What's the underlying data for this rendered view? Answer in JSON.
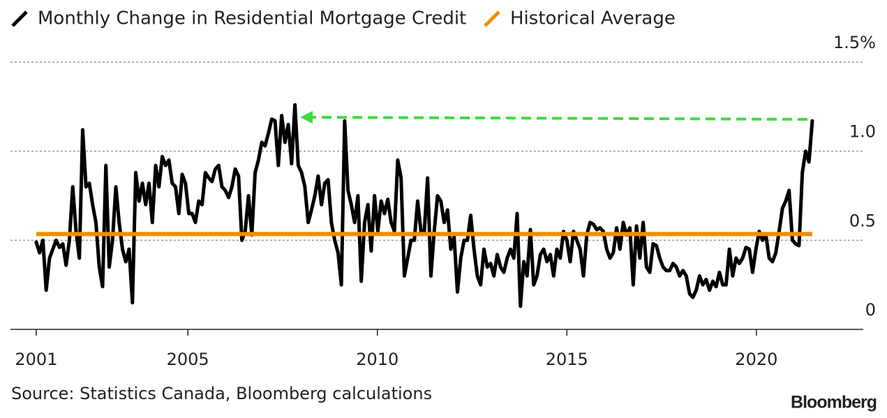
{
  "chart_data": {
    "type": "line",
    "source": "Source: Statistics Canada, Bloomberg calculations",
    "logo": "Bloomberg",
    "xlim": [
      2000.32,
      2022.82
    ],
    "xticks": [
      2001,
      2005,
      2010,
      2015,
      2020
    ],
    "ylim": [
      0,
      1.5
    ],
    "yticks": [
      0,
      0.5,
      {
        "value": 1,
        "label": "1.0"
      },
      {
        "value": 1.5,
        "label": "1.5%"
      }
    ],
    "grid": true,
    "legend": "top-left",
    "series": [
      {
        "name": "Monthly Change in Residential Mortgage Credit",
        "color": "#000000",
        "x": [
          2001,
          2001.0875,
          2001.175,
          2001.2625,
          2001.35,
          2001.4375,
          2001.525,
          2001.6125,
          2001.7,
          2001.7875,
          2001.875,
          2001.9625,
          2002.05,
          2002.1375,
          2002.225,
          2002.3125,
          2002.4,
          2002.4875,
          2002.575,
          2002.6625,
          2002.75,
          2002.8375,
          2002.925,
          2003.0125,
          2003.1,
          2003.1875,
          2003.275,
          2003.3625,
          2003.45,
          2003.5375,
          2003.625,
          2003.7125,
          2003.8,
          2003.8875,
          2003.975,
          2004.0625,
          2004.15,
          2004.2375,
          2004.325,
          2004.4125,
          2004.5,
          2004.5875,
          2004.675,
          2004.7625,
          2004.85,
          2004.9375,
          2005.025,
          2005.1125,
          2005.2,
          2005.2875,
          2005.375,
          2005.4625,
          2005.55,
          2005.6375,
          2005.725,
          2005.8125,
          2005.9,
          2005.9875,
          2006.075,
          2006.1625,
          2006.25,
          2006.3375,
          2006.425,
          2006.5125,
          2006.6,
          2006.6875,
          2006.775,
          2006.8625,
          2006.95,
          2007.0375,
          2007.125,
          2007.2125,
          2007.3,
          2007.3875,
          2007.475,
          2007.5625,
          2007.65,
          2007.7375,
          2007.825,
          2007.9125,
          2008,
          2008.0875,
          2008.175,
          2008.2625,
          2008.35,
          2008.4375,
          2008.525,
          2008.6125,
          2008.7,
          2008.7875,
          2008.875,
          2008.9625,
          2009.05,
          2009.1375,
          2009.225,
          2009.3125,
          2009.4,
          2009.4875,
          2009.575,
          2009.6625,
          2009.75,
          2009.8375,
          2009.925,
          2010.0125,
          2010.1,
          2010.1875,
          2010.275,
          2010.3625,
          2010.45,
          2010.5375,
          2010.625,
          2010.7125,
          2010.8,
          2010.8875,
          2010.975,
          2011.0625,
          2011.15,
          2011.2375,
          2011.325,
          2011.4125,
          2011.5,
          2011.5875,
          2011.675,
          2011.7625,
          2011.85,
          2011.9375,
          2012.025,
          2012.1125,
          2012.2,
          2012.2875,
          2012.375,
          2012.4625,
          2012.55,
          2012.6375,
          2012.725,
          2012.8125,
          2012.9,
          2012.9875,
          2013.075,
          2013.1625,
          2013.25,
          2013.3375,
          2013.425,
          2013.5125,
          2013.6,
          2013.6875,
          2013.775,
          2013.8625,
          2013.95,
          2014.0375,
          2014.125,
          2014.2125,
          2014.3,
          2014.3875,
          2014.475,
          2014.5625,
          2014.65,
          2014.7375,
          2014.825,
          2014.9125,
          2015,
          2015.0875,
          2015.175,
          2015.2625,
          2015.35,
          2015.4375,
          2015.525,
          2015.6125,
          2015.7,
          2015.7875,
          2015.875,
          2015.9625,
          2016.05,
          2016.1375,
          2016.225,
          2016.3125,
          2016.4,
          2016.4875,
          2016.575,
          2016.6625,
          2016.75,
          2016.8375,
          2016.925,
          2017.0125,
          2017.1,
          2017.1875,
          2017.275,
          2017.3625,
          2017.45,
          2017.5375,
          2017.625,
          2017.7125,
          2017.8,
          2017.8875,
          2017.975,
          2018.0625,
          2018.15,
          2018.2375,
          2018.325,
          2018.4125,
          2018.5,
          2018.5875,
          2018.675,
          2018.7625,
          2018.85,
          2018.9375,
          2019.025,
          2019.1125,
          2019.2,
          2019.2875,
          2019.375,
          2019.4625,
          2019.55,
          2019.6375,
          2019.725,
          2019.8125,
          2019.9,
          2019.9875,
          2020.075,
          2020.1625,
          2020.25,
          2020.3375,
          2020.425,
          2020.5125,
          2020.6,
          2020.6875,
          2020.775,
          2020.8625,
          2020.95,
          2021.0375,
          2021.125,
          2021.2125,
          2021.3,
          2021.3875,
          2021.475
        ],
        "values": [
          0.49,
          0.43,
          0.5,
          0.22,
          0.4,
          0.45,
          0.5,
          0.46,
          0.48,
          0.36,
          0.5,
          0.8,
          0.55,
          0.4,
          1.12,
          0.8,
          0.82,
          0.7,
          0.6,
          0.35,
          0.24,
          0.92,
          0.35,
          0.5,
          0.8,
          0.6,
          0.45,
          0.38,
          0.45,
          0.15,
          0.88,
          0.72,
          0.82,
          0.7,
          0.82,
          0.6,
          0.92,
          0.8,
          0.97,
          0.92,
          0.95,
          0.82,
          0.8,
          0.65,
          0.87,
          0.82,
          0.65,
          0.65,
          0.6,
          0.72,
          0.7,
          0.88,
          0.85,
          0.83,
          0.9,
          0.92,
          0.8,
          0.78,
          0.74,
          0.8,
          0.9,
          0.86,
          0.5,
          0.55,
          0.75,
          0.53,
          0.88,
          0.95,
          1.05,
          1.03,
          1.1,
          1.18,
          1.17,
          0.92,
          1.2,
          1.05,
          1.15,
          0.93,
          1.26,
          0.92,
          0.88,
          0.8,
          0.6,
          0.67,
          0.75,
          0.86,
          0.7,
          0.82,
          0.84,
          0.6,
          0.5,
          0.43,
          0.25,
          1.17,
          0.78,
          0.7,
          0.6,
          0.75,
          0.27,
          0.6,
          0.7,
          0.44,
          0.75,
          0.55,
          0.72,
          0.65,
          0.73,
          0.6,
          0.55,
          0.95,
          0.85,
          0.3,
          0.4,
          0.5,
          0.5,
          0.72,
          0.55,
          0.55,
          0.85,
          0.3,
          0.55,
          0.75,
          0.72,
          0.6,
          0.67,
          0.45,
          0.52,
          0.21,
          0.4,
          0.5,
          0.5,
          0.64,
          0.45,
          0.3,
          0.25,
          0.45,
          0.35,
          0.37,
          0.3,
          0.42,
          0.35,
          0.32,
          0.4,
          0.45,
          0.4,
          0.65,
          0.13,
          0.38,
          0.3,
          0.56,
          0.25,
          0.3,
          0.42,
          0.45,
          0.38,
          0.42,
          0.3,
          0.45,
          0.4,
          0.55,
          0.5,
          0.38,
          0.55,
          0.5,
          0.45,
          0.3,
          0.53,
          0.6,
          0.59,
          0.56,
          0.57,
          0.55,
          0.45,
          0.4,
          0.43,
          0.57,
          0.45,
          0.6,
          0.53,
          0.57,
          0.25,
          0.58,
          0.4,
          0.6,
          0.35,
          0.32,
          0.48,
          0.47,
          0.4,
          0.35,
          0.33,
          0.33,
          0.37,
          0.35,
          0.3,
          0.33,
          0.3,
          0.2,
          0.18,
          0.22,
          0.3,
          0.25,
          0.28,
          0.22,
          0.27,
          0.24,
          0.32,
          0.25,
          0.25,
          0.45,
          0.3,
          0.4,
          0.37,
          0.4,
          0.46,
          0.45,
          0.32,
          0.45,
          0.55,
          0.5,
          0.53,
          0.4,
          0.38,
          0.43,
          0.55,
          0.68,
          0.72,
          0.78,
          0.5,
          0.48,
          0.47,
          0.88,
          1.0,
          0.94,
          1.17
        ]
      },
      {
        "name": "Historical Average",
        "color": "#f28c00",
        "x": [
          2001,
          2021.475
        ],
        "values": [
          0.535,
          0.535
        ]
      }
    ]
  }
}
